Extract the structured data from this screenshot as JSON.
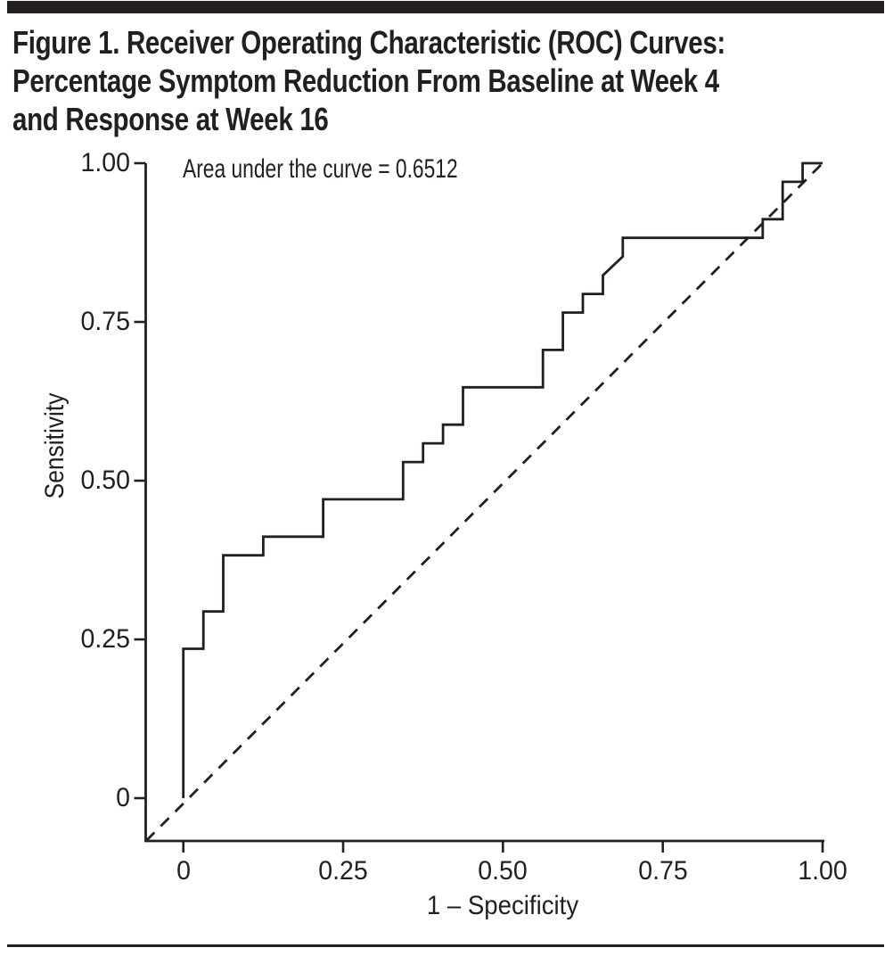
{
  "figure": {
    "title_lines": [
      "Figure 1. Receiver Operating Characteristic (ROC) Curves:",
      "Percentage Symptom Reduction From Baseline at Week 4",
      "and Response at Week 16"
    ],
    "ink_color": "#231f20",
    "background": "#ffffff"
  },
  "chart_data": {
    "type": "line",
    "subtype": "roc_step_curve",
    "title": "",
    "annotation": "Area under the curve = 0.6512",
    "auc": 0.6512,
    "xlabel": "1 – Specificity",
    "ylabel": "Sensitivity",
    "xlim": [
      0,
      1
    ],
    "ylim": [
      0,
      1
    ],
    "grid": false,
    "legend": "none",
    "xticks": {
      "values": [
        0,
        0.25,
        0.5,
        0.75,
        1.0
      ],
      "labels": [
        "0",
        "0.25",
        "0.50",
        "0.75",
        "1.00"
      ]
    },
    "yticks": {
      "values": [
        0,
        0.25,
        0.5,
        0.75,
        1.0
      ],
      "labels": [
        "0",
        "0.25",
        "0.50",
        "0.75",
        "1.00"
      ]
    },
    "series": [
      {
        "name": "ROC curve",
        "line_style": "solid",
        "points": [
          [
            0.0,
            0.0
          ],
          [
            0.0,
            0.2353
          ],
          [
            0.0313,
            0.2353
          ],
          [
            0.0313,
            0.2941
          ],
          [
            0.0625,
            0.2941
          ],
          [
            0.0625,
            0.3824
          ],
          [
            0.125,
            0.3824
          ],
          [
            0.125,
            0.4118
          ],
          [
            0.2188,
            0.4118
          ],
          [
            0.2188,
            0.4706
          ],
          [
            0.3438,
            0.4706
          ],
          [
            0.3438,
            0.5294
          ],
          [
            0.375,
            0.5294
          ],
          [
            0.375,
            0.5588
          ],
          [
            0.4063,
            0.5588
          ],
          [
            0.4063,
            0.5882
          ],
          [
            0.4375,
            0.5882
          ],
          [
            0.4375,
            0.6471
          ],
          [
            0.5625,
            0.6471
          ],
          [
            0.5625,
            0.7059
          ],
          [
            0.5938,
            0.7059
          ],
          [
            0.5938,
            0.7647
          ],
          [
            0.625,
            0.7647
          ],
          [
            0.625,
            0.7941
          ],
          [
            0.6563,
            0.7941
          ],
          [
            0.6563,
            0.8235
          ],
          [
            0.6875,
            0.8529
          ],
          [
            0.6875,
            0.8824
          ],
          [
            0.9063,
            0.8824
          ],
          [
            0.9063,
            0.9118
          ],
          [
            0.9375,
            0.9118
          ],
          [
            0.9375,
            0.9706
          ],
          [
            0.9688,
            0.9706
          ],
          [
            0.9688,
            1.0
          ],
          [
            1.0,
            1.0
          ]
        ]
      },
      {
        "name": "Chance reference diagonal",
        "line_style": "dashed",
        "points": [
          [
            -0.058,
            -0.067
          ],
          [
            1.0,
            1.0
          ]
        ]
      }
    ]
  }
}
